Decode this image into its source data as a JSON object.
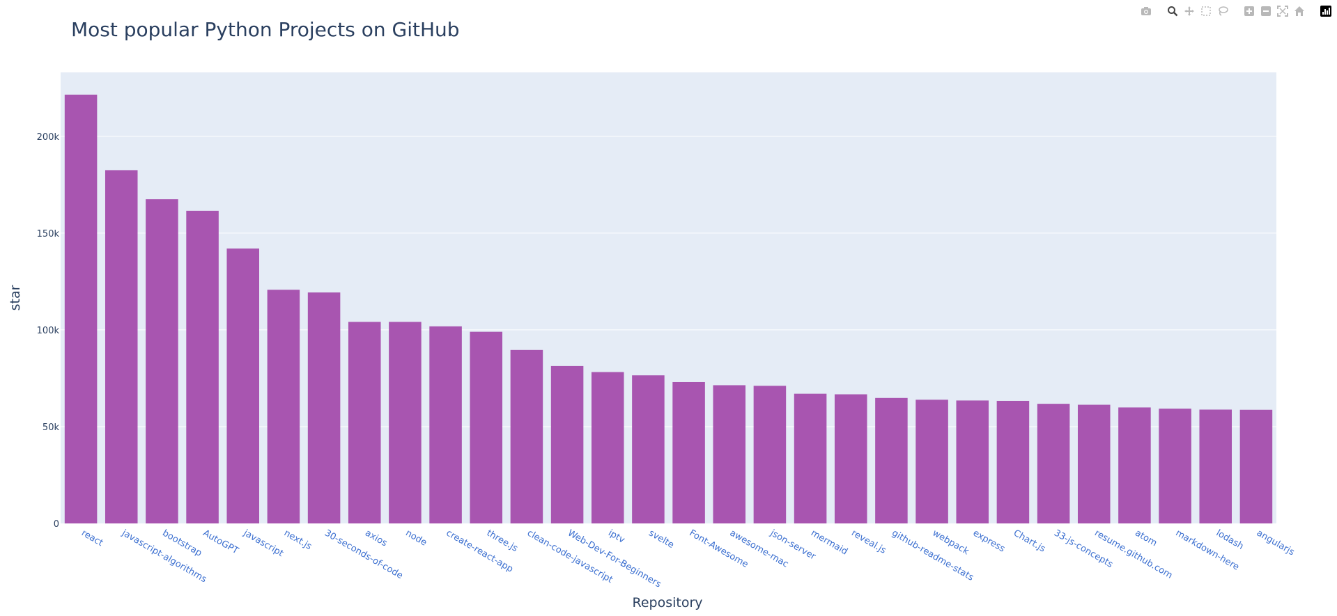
{
  "colors": {
    "bar": "#ab63fa",
    "bar_fill": "#a855b0",
    "plot_bg": "#e5ecf6",
    "grid": "#ffffff",
    "title": "#2a3f5f",
    "xtick": "#3b6fd0",
    "ytick": "#2a3f5f",
    "modebar_icon": "#b8b8b8"
  },
  "modebar": {
    "icons": [
      "camera-icon",
      "zoom-icon",
      "pan-icon",
      "box-select-icon",
      "lasso-select-icon",
      "zoom-in-icon",
      "zoom-out-icon",
      "autoscale-icon",
      "reset-axes-icon",
      "plotly-logo-icon"
    ]
  },
  "chart_data": {
    "type": "bar",
    "title": "Most popular Python Projects on GitHub",
    "xlabel": "Repository",
    "ylabel": "star",
    "ylim": [
      0,
      233000
    ],
    "yticks": [
      0,
      50000,
      100000,
      150000,
      200000
    ],
    "ytick_labels": [
      "0",
      "50k",
      "100k",
      "150k",
      "200k"
    ],
    "grid": true,
    "categories": [
      "react",
      "javascript-algorithms",
      "bootstrap",
      "AutoGPT",
      "javascript",
      "next.js",
      "30-seconds-of-code",
      "axios",
      "node",
      "create-react-app",
      "three.js",
      "clean-code-javascript",
      "Web-Dev-For-Beginners",
      "iptv",
      "svelte",
      "Font-Awesome",
      "awesome-mac",
      "json-server",
      "mermaid",
      "reveal.js",
      "github-readme-stats",
      "webpack",
      "express",
      "Chart.js",
      "33-js-concepts",
      "resume.github.com",
      "atom",
      "markdown-here",
      "lodash",
      "angularjs"
    ],
    "values": [
      221500,
      182500,
      167500,
      161500,
      142000,
      120700,
      119300,
      104100,
      104100,
      101800,
      99000,
      89600,
      81300,
      78200,
      76500,
      73000,
      71400,
      71100,
      67000,
      66700,
      64800,
      63900,
      63500,
      63300,
      61800,
      61300,
      59900,
      59300,
      58800,
      58700
    ]
  }
}
